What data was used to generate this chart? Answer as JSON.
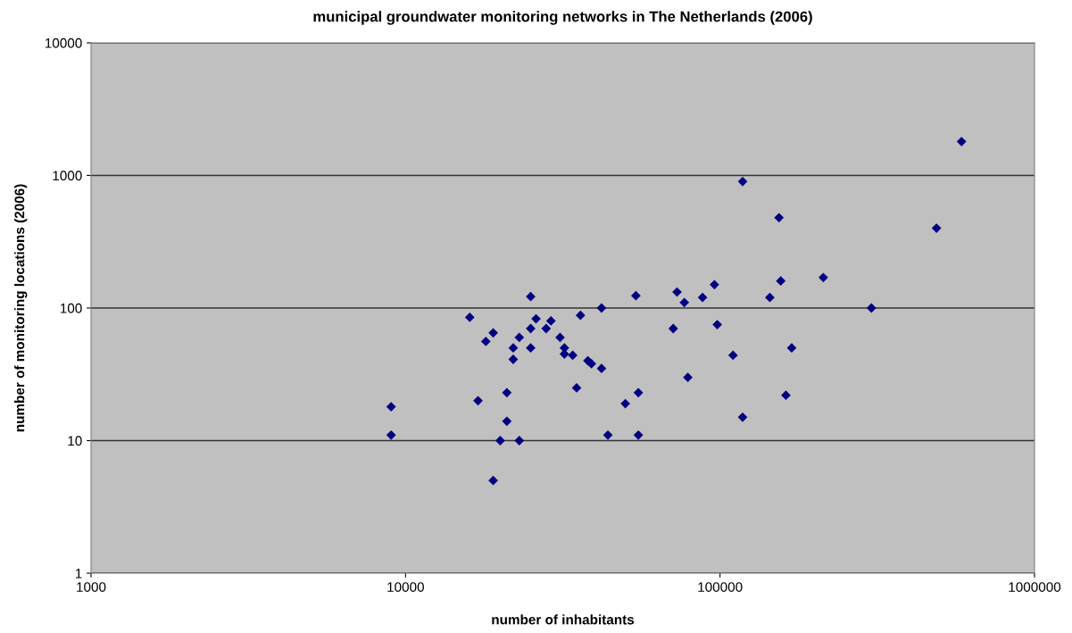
{
  "chart_data": {
    "type": "scatter",
    "title": "municipal groundwater monitoring networks in The Netherlands (2006)",
    "xlabel": "number of inhabitants",
    "ylabel": "number of monitoring locations (2006)",
    "log": "xy",
    "grid": "y",
    "marker": "diamond",
    "xlim": [
      1000,
      1000000
    ],
    "xticks": [
      1000,
      10000,
      100000,
      1000000
    ],
    "ylim": [
      1,
      10000
    ],
    "yticks": [
      1,
      10,
      100,
      1000,
      10000
    ],
    "series": [
      {
        "color": "#000080",
        "x": [
          9000,
          9000,
          16000,
          17000,
          18000,
          19000,
          19000,
          20000,
          21000,
          21000,
          22000,
          22000,
          23000,
          23000,
          25000,
          25000,
          25000,
          26000,
          28000,
          29000,
          31000,
          32000,
          32000,
          34000,
          35000,
          36000,
          38000,
          39000,
          42000,
          42000,
          44000,
          50000,
          54000,
          55000,
          55000,
          71000,
          73000,
          77000,
          79000,
          88000,
          96000,
          98000,
          110000,
          118000,
          118000,
          144000,
          154000,
          156000,
          162000,
          169000,
          213000,
          303000,
          488000,
          586000
        ],
        "values": [
          18,
          11,
          85,
          20,
          56,
          65,
          5,
          10,
          23,
          14,
          50,
          41,
          60,
          10,
          122,
          70,
          50,
          83,
          70,
          80,
          60,
          50,
          45,
          44,
          25,
          88,
          40,
          38,
          35,
          100,
          11,
          19,
          124,
          23,
          11,
          70,
          132,
          110,
          30,
          120,
          150,
          75,
          44,
          15,
          900,
          120,
          480,
          160,
          22,
          50,
          170,
          100,
          400,
          1800
        ]
      }
    ]
  }
}
